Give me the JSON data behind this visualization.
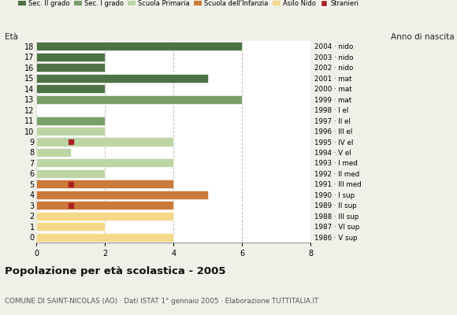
{
  "title": "Popolazione per età scolastica - 2005",
  "subtitle": "COMUNE DI SAINT-NICOLAS (AO) · Dati ISTAT 1° gennaio 2005 · Elaborazione TUTTITALIA.IT",
  "ylabel_left": "Età",
  "ylabel_right": "Anno di nascita",
  "ages": [
    18,
    17,
    16,
    15,
    14,
    13,
    12,
    11,
    10,
    9,
    8,
    7,
    6,
    5,
    4,
    3,
    2,
    1,
    0
  ],
  "birth_years": [
    "1986 · V sup",
    "1987 · VI sup",
    "1988 · III sup",
    "1989 · II sup",
    "1990 · I sup",
    "1991 · III med",
    "1992 · II med",
    "1993 · I med",
    "1994 · V el",
    "1995 · IV el",
    "1996 · III el",
    "1997 · II el",
    "1998 · I el",
    "1999 · mat",
    "2000 · mat",
    "2001 · mat",
    "2002 · nido",
    "2003 · nido",
    "2004 · nido"
  ],
  "bar_values": [
    6,
    2,
    2,
    5,
    2,
    6,
    0,
    2,
    2,
    4,
    1,
    4,
    2,
    4,
    5,
    4,
    4,
    2,
    4
  ],
  "stranieri_x": [
    0,
    0,
    0,
    0,
    0,
    0,
    0,
    0,
    0,
    1,
    0,
    0,
    0,
    1,
    0,
    1,
    0,
    0,
    0
  ],
  "categories": [
    "Sec. II grado",
    "Sec. I grado",
    "Scuola Primaria",
    "Scuola dell'Infanzia",
    "Asilo Nido"
  ],
  "colors": {
    "Sec. II grado": "#4e7245",
    "Sec. I grado": "#7a9e6a",
    "Scuola Primaria": "#bdd5a5",
    "Scuola dell'Infanzia": "#cc7a3a",
    "Asilo Nido": "#f5d98a",
    "Stranieri": "#aa2222"
  },
  "bar_colors": [
    "#4e7245",
    "#4e7245",
    "#4e7245",
    "#4e7245",
    "#4e7245",
    "#7a9e6a",
    "#7a9e6a",
    "#7a9e6a",
    "#bdd5a5",
    "#bdd5a5",
    "#bdd5a5",
    "#bdd5a5",
    "#bdd5a5",
    "#cc7a3a",
    "#cc7a3a",
    "#cc7a3a",
    "#f5d98a",
    "#f5d98a",
    "#f5d98a"
  ],
  "xlim": [
    0,
    8
  ],
  "xticks": [
    0,
    2,
    4,
    6,
    8
  ],
  "background_color": "#f0f0e8",
  "plot_bg_color": "#ffffff",
  "grid_color": "#bbbbbb"
}
